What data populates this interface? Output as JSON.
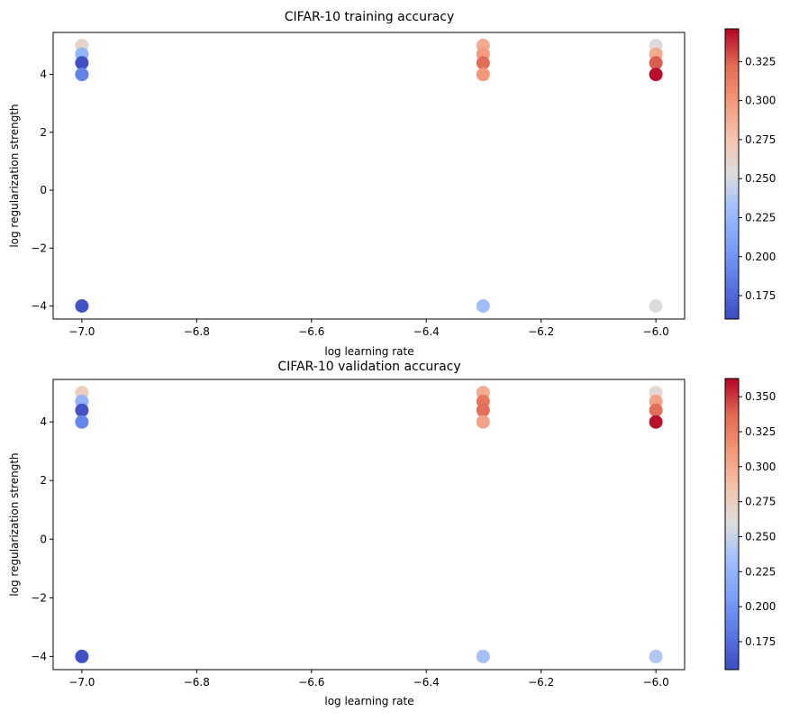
{
  "chart_data": [
    {
      "type": "scatter",
      "title": "CIFAR-10 training accuracy",
      "xlabel": "log learning rate",
      "ylabel": "log regularization strength",
      "xlim": [
        -7.05,
        -5.95
      ],
      "ylim": [
        -4.45,
        5.45
      ],
      "xticks": [
        -7.0,
        -6.8,
        -6.6,
        -6.4,
        -6.2,
        -6.0
      ],
      "xtick_labels": [
        "−7.0",
        "−6.8",
        "−6.6",
        "−6.4",
        "−6.2",
        "−6.0"
      ],
      "yticks": [
        -4,
        -2,
        0,
        2,
        4
      ],
      "ytick_labels": [
        "−4",
        "−2",
        "0",
        "2",
        "4"
      ],
      "colorbar": {
        "colormap": "coolwarm",
        "range": [
          0.16,
          0.346
        ],
        "ticks": [
          0.175,
          0.2,
          0.225,
          0.25,
          0.275,
          0.3,
          0.325
        ],
        "tick_labels": [
          "0.175",
          "0.200",
          "0.225",
          "0.250",
          "0.275",
          "0.300",
          "0.325"
        ]
      },
      "points": [
        {
          "x": -7.0,
          "y": 5.0,
          "value": 0.262
        },
        {
          "x": -7.0,
          "y": 4.699,
          "value": 0.222
        },
        {
          "x": -7.0,
          "y": 4.398,
          "value": 0.162
        },
        {
          "x": -7.0,
          "y": 4.0,
          "value": 0.19
        },
        {
          "x": -7.0,
          "y": -4.0,
          "value": 0.164
        },
        {
          "x": -6.301,
          "y": 5.0,
          "value": 0.29
        },
        {
          "x": -6.301,
          "y": 4.699,
          "value": 0.298
        },
        {
          "x": -6.301,
          "y": 4.398,
          "value": 0.322
        },
        {
          "x": -6.301,
          "y": 4.0,
          "value": 0.3
        },
        {
          "x": -6.301,
          "y": -4.0,
          "value": 0.23
        },
        {
          "x": -6.0,
          "y": 5.0,
          "value": 0.254
        },
        {
          "x": -6.0,
          "y": 4.699,
          "value": 0.29
        },
        {
          "x": -6.0,
          "y": 4.398,
          "value": 0.326
        },
        {
          "x": -6.0,
          "y": 4.0,
          "value": 0.344
        },
        {
          "x": -6.0,
          "y": -4.0,
          "value": 0.252
        }
      ]
    },
    {
      "type": "scatter",
      "title": "CIFAR-10 validation accuracy",
      "xlabel": "log learning rate",
      "ylabel": "log regularization strength",
      "xlim": [
        -7.05,
        -5.95
      ],
      "ylim": [
        -4.45,
        5.45
      ],
      "xticks": [
        -7.0,
        -6.8,
        -6.6,
        -6.4,
        -6.2,
        -6.0
      ],
      "xtick_labels": [
        "−7.0",
        "−6.8",
        "−6.6",
        "−6.4",
        "−6.2",
        "−6.0"
      ],
      "yticks": [
        -4,
        -2,
        0,
        2,
        4
      ],
      "ytick_labels": [
        "−4",
        "−2",
        "0",
        "2",
        "4"
      ],
      "colorbar": {
        "colormap": "coolwarm",
        "range": [
          0.155,
          0.363
        ],
        "ticks": [
          0.175,
          0.2,
          0.225,
          0.25,
          0.275,
          0.3,
          0.325,
          0.35
        ],
        "tick_labels": [
          "0.175",
          "0.200",
          "0.225",
          "0.250",
          "0.275",
          "0.300",
          "0.325",
          "0.350"
        ]
      },
      "points": [
        {
          "x": -7.0,
          "y": 5.0,
          "value": 0.275
        },
        {
          "x": -7.0,
          "y": 4.699,
          "value": 0.225
        },
        {
          "x": -7.0,
          "y": 4.398,
          "value": 0.16
        },
        {
          "x": -7.0,
          "y": 4.0,
          "value": 0.19
        },
        {
          "x": -7.0,
          "y": -4.0,
          "value": 0.158
        },
        {
          "x": -6.301,
          "y": 5.0,
          "value": 0.3
        },
        {
          "x": -6.301,
          "y": 4.699,
          "value": 0.33
        },
        {
          "x": -6.301,
          "y": 4.398,
          "value": 0.335
        },
        {
          "x": -6.301,
          "y": 4.0,
          "value": 0.305
        },
        {
          "x": -6.301,
          "y": -4.0,
          "value": 0.235
        },
        {
          "x": -6.0,
          "y": 5.0,
          "value": 0.265
        },
        {
          "x": -6.0,
          "y": 4.699,
          "value": 0.305
        },
        {
          "x": -6.0,
          "y": 4.398,
          "value": 0.335
        },
        {
          "x": -6.0,
          "y": 4.0,
          "value": 0.36
        },
        {
          "x": -6.0,
          "y": -4.0,
          "value": 0.24
        }
      ]
    }
  ]
}
